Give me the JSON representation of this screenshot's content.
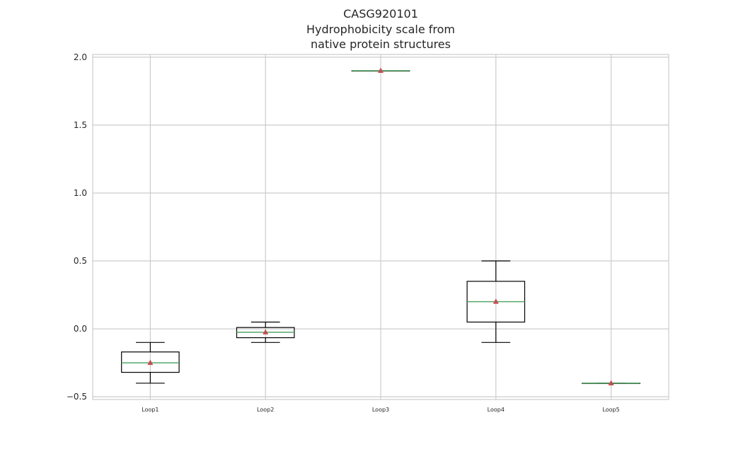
{
  "chart_data": {
    "type": "box",
    "title_lines": [
      "CASG920101",
      "Hydrophobicity scale from",
      "native protein structures"
    ],
    "categories": [
      "Loop1",
      "Loop2",
      "Loop3",
      "Loop4",
      "Loop5"
    ],
    "boxes": [
      {
        "label": "Loop1",
        "whisker_low": -0.4,
        "q1": -0.32,
        "median": -0.25,
        "q3": -0.17,
        "whisker_high": -0.1,
        "mean": -0.25
      },
      {
        "label": "Loop2",
        "whisker_low": -0.1,
        "q1": -0.065,
        "median": -0.025,
        "q3": 0.01,
        "whisker_high": 0.05,
        "mean": -0.025
      },
      {
        "label": "Loop3",
        "whisker_low": 1.9,
        "q1": 1.9,
        "median": 1.9,
        "q3": 1.9,
        "whisker_high": 1.9,
        "mean": 1.9
      },
      {
        "label": "Loop4",
        "whisker_low": -0.1,
        "q1": 0.05,
        "median": 0.2,
        "q3": 0.35,
        "whisker_high": 0.5,
        "mean": 0.2
      },
      {
        "label": "Loop5",
        "whisker_low": -0.4,
        "q1": -0.4,
        "median": -0.4,
        "q3": -0.4,
        "whisker_high": -0.4,
        "mean": -0.4
      }
    ],
    "yticks": [
      -0.5,
      0.0,
      0.5,
      1.0,
      1.5,
      2.0
    ],
    "ytick_labels": [
      "−0.5",
      "0.0",
      "0.5",
      "1.0",
      "1.5",
      "2.0"
    ],
    "ylim": [
      -0.52,
      2.02
    ],
    "xlabel": "",
    "ylabel": "",
    "grid": true,
    "colors": {
      "box": "#000000",
      "median": "#55a868",
      "mean_marker": "#c44e52",
      "grid": "#cccccc",
      "text": "#262626"
    }
  }
}
